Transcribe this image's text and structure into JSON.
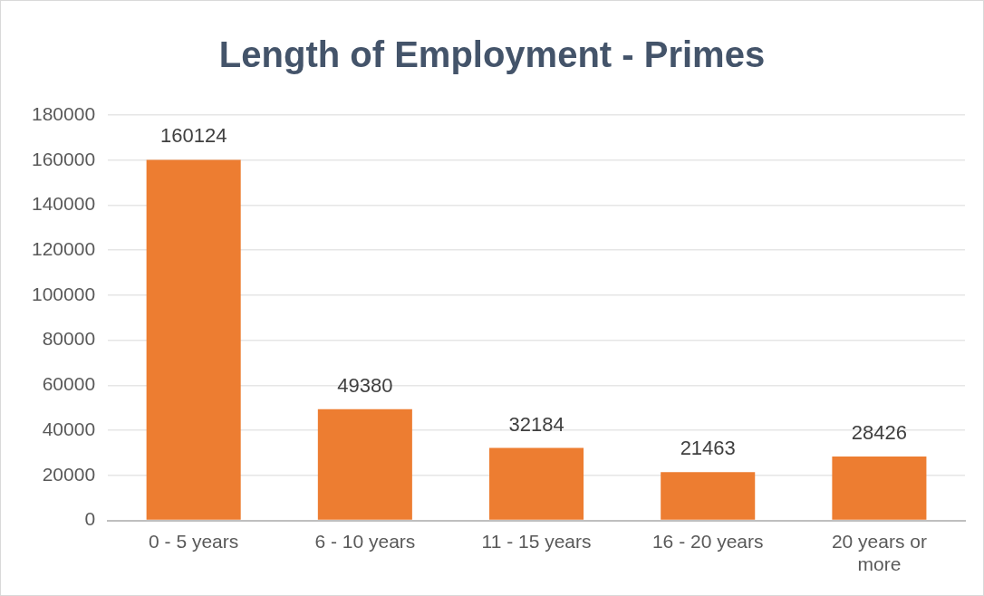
{
  "chart_data": {
    "type": "bar",
    "title": "Length of Employment - Primes",
    "categories": [
      "0 - 5 years",
      "6 - 10 years",
      "11 - 15 years",
      "16 - 20 years",
      "20 years or more"
    ],
    "values": [
      160124,
      49380,
      32184,
      21463,
      28426
    ],
    "color": "#ed7d31",
    "ylim": [
      0,
      180000
    ],
    "yticks": [
      0,
      20000,
      40000,
      60000,
      80000,
      100000,
      120000,
      140000,
      160000,
      180000
    ],
    "grid": "y",
    "data_labels": true
  }
}
